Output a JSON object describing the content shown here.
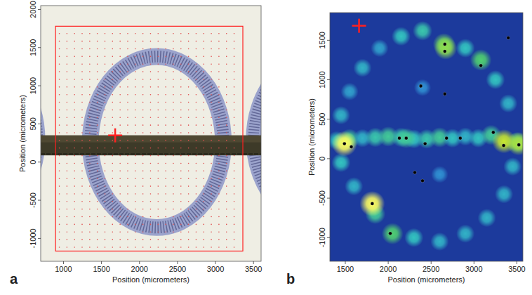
{
  "chart_data": [
    {
      "type": "image",
      "panel_label": "a",
      "xlabel": "Position (micrometers)",
      "ylabel": "Position (micrometers)",
      "xlim": [
        700,
        3600
      ],
      "ylim": [
        -1300,
        2050
      ],
      "xticks": [
        1000,
        1500,
        2000,
        2500,
        3000,
        3500
      ],
      "yticks": [
        -1000,
        -500,
        0,
        500,
        1000,
        1500,
        2000
      ],
      "rings": [
        {
          "cx": 2228,
          "cy": 263,
          "rx": 875,
          "ry": 1120,
          "width": 220
        },
        {
          "cx": -320,
          "cy": 300,
          "rx": 980,
          "ry": 1150,
          "width": 200
        },
        {
          "cx": 4480,
          "cy": 300,
          "rx": 980,
          "ry": 1150,
          "width": 200
        }
      ],
      "band": [
        88,
        350
      ],
      "roi": {
        "x": [
          895,
          3360
        ],
        "y": [
          -1166,
          1780
        ]
      },
      "grid_step": 100,
      "cross": {
        "x": 1680,
        "y": 350
      }
    },
    {
      "type": "heatmap",
      "panel_label": "b",
      "xlabel": "Position (micrometers)",
      "ylabel": "Position (micrometers)",
      "xlim": [
        1320,
        3570
      ],
      "ylim": [
        -1300,
        1850
      ],
      "xticks": [
        1500,
        2000,
        2500,
        3000,
        3500
      ],
      "yticks": [
        -1000,
        -500,
        0,
        500,
        1000,
        1500
      ],
      "blobs": [
        {
          "x": 1400,
          "y": 230,
          "value": 0.5
        },
        {
          "x": 1550,
          "y": 250,
          "value": 0.6
        },
        {
          "x": 1700,
          "y": 260,
          "value": 0.45
        },
        {
          "x": 1850,
          "y": 270,
          "value": 0.55
        },
        {
          "x": 2000,
          "y": 280,
          "value": 0.6
        },
        {
          "x": 2150,
          "y": 270,
          "value": 0.55
        },
        {
          "x": 2300,
          "y": 250,
          "value": 0.5
        },
        {
          "x": 2450,
          "y": 250,
          "value": 0.55
        },
        {
          "x": 2600,
          "y": 270,
          "value": 0.6
        },
        {
          "x": 2750,
          "y": 260,
          "value": 0.5
        },
        {
          "x": 2900,
          "y": 280,
          "value": 0.45
        },
        {
          "x": 3050,
          "y": 260,
          "value": 0.5
        },
        {
          "x": 3200,
          "y": 300,
          "value": 0.6
        },
        {
          "x": 3500,
          "y": 210,
          "value": 0.6
        },
        {
          "x": 1450,
          "y": 550,
          "value": 0.45
        },
        {
          "x": 1550,
          "y": 850,
          "value": 0.4
        },
        {
          "x": 1700,
          "y": 1150,
          "value": 0.45
        },
        {
          "x": 1900,
          "y": 1400,
          "value": 0.4
        },
        {
          "x": 2150,
          "y": 1550,
          "value": 0.5
        },
        {
          "x": 2400,
          "y": 1620,
          "value": 0.55
        },
        {
          "x": 2650,
          "y": 1450,
          "value": 0.75
        },
        {
          "x": 2900,
          "y": 1400,
          "value": 0.5
        },
        {
          "x": 3080,
          "y": 1250,
          "value": 0.7
        },
        {
          "x": 3250,
          "y": 1000,
          "value": 0.5
        },
        {
          "x": 3400,
          "y": 700,
          "value": 0.45
        },
        {
          "x": 3450,
          "y": -100,
          "value": 0.45
        },
        {
          "x": 3350,
          "y": -450,
          "value": 0.45
        },
        {
          "x": 3150,
          "y": -750,
          "value": 0.45
        },
        {
          "x": 2900,
          "y": -950,
          "value": 0.45
        },
        {
          "x": 2600,
          "y": -1050,
          "value": 0.45
        },
        {
          "x": 2300,
          "y": -1000,
          "value": 0.5
        },
        {
          "x": 2050,
          "y": -950,
          "value": 0.7
        },
        {
          "x": 1850,
          "y": -700,
          "value": 0.6
        },
        {
          "x": 1600,
          "y": -350,
          "value": 0.45
        },
        {
          "x": 1450,
          "y": -50,
          "value": 0.5
        },
        {
          "x": 2400,
          "y": 900,
          "value": 0.35
        },
        {
          "x": 2600,
          "y": -200,
          "value": 0.35
        },
        {
          "x": 1490,
          "y": 190,
          "value": 1.0
        },
        {
          "x": 1814,
          "y": -570,
          "value": 1.0
        },
        {
          "x": 3350,
          "y": 220,
          "value": 0.9
        },
        {
          "x": 3520,
          "y": 190,
          "value": 0.85
        },
        {
          "x": 2670,
          "y": 1400,
          "value": 0.8
        },
        {
          "x": 2210,
          "y": 260,
          "value": 0.6
        }
      ],
      "points": [
        {
          "x": 1490,
          "y": 190
        },
        {
          "x": 1570,
          "y": 150
        },
        {
          "x": 2130,
          "y": 260
        },
        {
          "x": 2210,
          "y": 260
        },
        {
          "x": 2430,
          "y": 190
        },
        {
          "x": 2680,
          "y": 260
        },
        {
          "x": 2840,
          "y": 260
        },
        {
          "x": 2660,
          "y": 1450
        },
        {
          "x": 2660,
          "y": 1360
        },
        {
          "x": 3080,
          "y": 1180
        },
        {
          "x": 2380,
          "y": 920
        },
        {
          "x": 2660,
          "y": 820
        },
        {
          "x": 3400,
          "y": 1530
        },
        {
          "x": 2310,
          "y": -175
        },
        {
          "x": 2400,
          "y": -280
        },
        {
          "x": 1814,
          "y": -570
        },
        {
          "x": 2024,
          "y": -947
        },
        {
          "x": 3225,
          "y": 333
        },
        {
          "x": 3346,
          "y": 167
        },
        {
          "x": 3523,
          "y": 175
        }
      ],
      "cross": {
        "x": 1660,
        "y": 1684
      }
    }
  ]
}
